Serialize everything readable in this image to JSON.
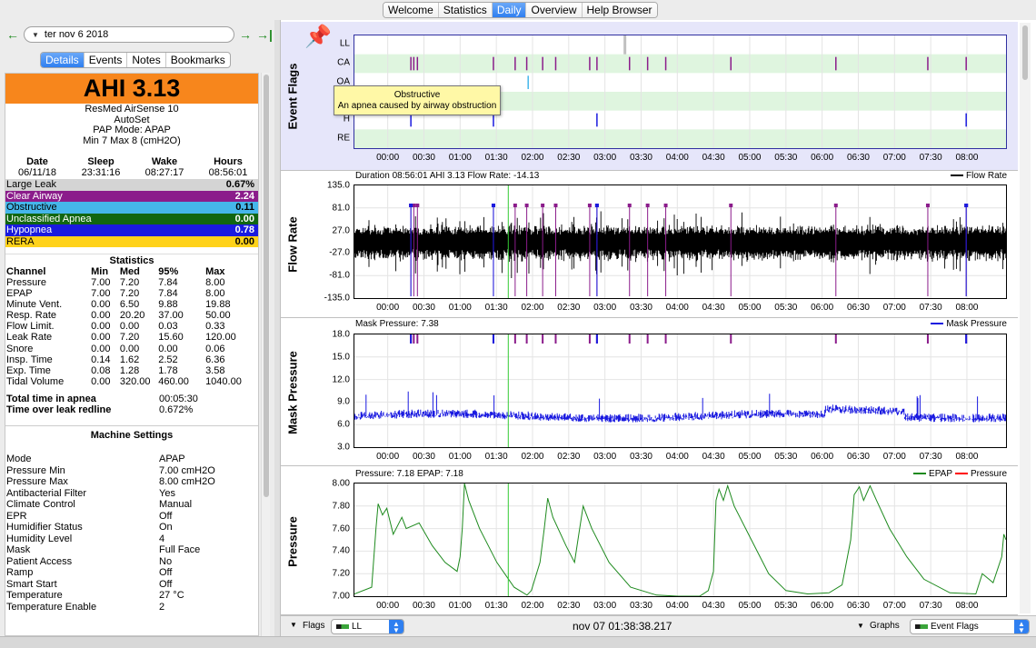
{
  "window": {
    "tabs": [
      {
        "label": "Welcome"
      },
      {
        "label": "Statistics"
      },
      {
        "label": "Daily"
      },
      {
        "label": "Overview"
      },
      {
        "label": "Help Browser"
      }
    ]
  },
  "nav": {
    "date": "ter nov 6 2018",
    "back": "←",
    "forward": "→",
    "last": "→|"
  },
  "left_tabs": [
    {
      "label": "Details"
    },
    {
      "label": "Events"
    },
    {
      "label": "Notes"
    },
    {
      "label": "Bookmarks"
    }
  ],
  "summary": {
    "ahi": "AHI 3.13",
    "device": "ResMed AirSense 10",
    "model": "AutoSet",
    "mode": "PAP Mode: APAP",
    "range": "Min 7 Max 8 (cmH2O)",
    "headers": [
      "Date",
      "Sleep",
      "Wake",
      "Hours"
    ],
    "values": [
      "06/11/18",
      "23:31:16",
      "08:27:17",
      "08:56:01"
    ]
  },
  "events": [
    {
      "label": "Large Leak",
      "value": "0.67%",
      "bg": "#d4d4d4",
      "fg": "#000000"
    },
    {
      "label": "Clear Airway",
      "value": "2.24",
      "bg": "#8b1c8b",
      "fg": "#ffffff"
    },
    {
      "label": "Obstructive",
      "value": "0.11",
      "bg": "#45b6ea",
      "fg": "#000000"
    },
    {
      "label": "Unclassified Apnea",
      "value": "0.00",
      "bg": "#116611",
      "fg": "#ffffff"
    },
    {
      "label": "Hypopnea",
      "value": "0.78",
      "bg": "#1a1adf",
      "fg": "#ffffff"
    },
    {
      "label": "RERA",
      "value": "0.00",
      "bg": "#ffd21a",
      "fg": "#000000"
    }
  ],
  "statistics": {
    "title": "Statistics",
    "headers": [
      "Channel",
      "Min",
      "Med",
      "95%",
      "Max"
    ],
    "rows": [
      [
        "Pressure",
        "7.00",
        "7.20",
        "7.84",
        "8.00"
      ],
      [
        "EPAP",
        "7.00",
        "7.20",
        "7.84",
        "8.00"
      ],
      [
        "Minute Vent.",
        "0.00",
        "6.50",
        "9.88",
        "19.88"
      ],
      [
        "Resp. Rate",
        "0.00",
        "20.20",
        "37.00",
        "50.00"
      ],
      [
        "Flow Limit.",
        "0.00",
        "0.00",
        "0.03",
        "0.33"
      ],
      [
        "Leak Rate",
        "0.00",
        "7.20",
        "15.60",
        "120.00"
      ],
      [
        "Snore",
        "0.00",
        "0.00",
        "0.00",
        "0.06"
      ],
      [
        "Insp. Time",
        "0.14",
        "1.62",
        "2.52",
        "6.36"
      ],
      [
        "Exp. Time",
        "0.08",
        "1.28",
        "1.78",
        "3.58"
      ],
      [
        "Tidal Volume",
        "0.00",
        "320.00",
        "460.00",
        "1040.00"
      ]
    ],
    "apnea_label": "Total time in apnea",
    "apnea_value": "00:05:30",
    "leak_label": "Time over leak redline",
    "leak_value": "0.672%"
  },
  "machine": {
    "title": "Machine Settings",
    "rows": [
      [
        "Mode",
        "APAP"
      ],
      [
        "Pressure Min",
        "7.00 cmH2O"
      ],
      [
        "Pressure Max",
        "8.00 cmH2O"
      ],
      [
        "Antibacterial Filter",
        "Yes"
      ],
      [
        "Climate Control",
        "Manual"
      ],
      [
        "EPR",
        "Off"
      ],
      [
        "Humidifier Status",
        "On"
      ],
      [
        "Humidity Level",
        "4"
      ],
      [
        "Mask",
        "Full Face"
      ],
      [
        "Patient Access",
        "No"
      ],
      [
        "Ramp",
        "Off"
      ],
      [
        "Smart Start",
        "Off"
      ],
      [
        "Temperature",
        "27 °C"
      ],
      [
        "Temperature Enable",
        "2"
      ]
    ]
  },
  "xaxis": [
    "00:00",
    "00:30",
    "01:00",
    "01:30",
    "02:00",
    "02:30",
    "03:00",
    "03:30",
    "04:00",
    "04:30",
    "05:00",
    "05:30",
    "06:00",
    "06:30",
    "07:00",
    "07:30",
    "08:00"
  ],
  "event_flags": {
    "ylabel": "Event Flags",
    "rows": [
      "LL",
      "CA",
      "OA",
      "UA",
      "H",
      "RE"
    ],
    "ca_times_hours": [
      0.78,
      0.82,
      0.87,
      1.92,
      2.22,
      2.38,
      2.6,
      2.78,
      3.25,
      3.35,
      3.8,
      4.05,
      4.3,
      5.2,
      6.65,
      7.92,
      8.45
    ],
    "oa_times_hours": [
      2.4
    ],
    "h_times_hours": [
      0.78,
      1.92,
      3.35,
      8.45
    ],
    "ll_times_hours": [
      3.73
    ],
    "tooltip_title": "Obstructive",
    "tooltip_text": "An apnea caused by airway obstruction"
  },
  "flow": {
    "ylabel": "Flow Rate",
    "title": "Duration 08:56:01 AHI 3.13 Flow Rate: -14.13",
    "legend": "Flow Rate",
    "yticks": [
      "135.0",
      "81.0",
      "27.0",
      "-27.0",
      "-81.0",
      "-135.0"
    ],
    "ylim": [
      -135,
      135
    ]
  },
  "mask": {
    "ylabel": "Mask Pressure",
    "title": "Mask Pressure: 7.38",
    "legend": "Mask Pressure",
    "yticks": [
      "18.0",
      "15.0",
      "12.0",
      "9.0",
      "6.0",
      "3.0"
    ],
    "ylim": [
      3,
      18
    ]
  },
  "pressure": {
    "ylabel": "Pressure",
    "title": "Pressure: 7.18 EPAP: 7.18",
    "legend_epap": "EPAP",
    "legend_pressure": "Pressure",
    "yticks": [
      "8.00",
      "7.80",
      "7.60",
      "7.40",
      "7.20",
      "7.00"
    ],
    "ylim": [
      7.0,
      8.0
    ],
    "colors": {
      "epap": "#1e8a1e",
      "pressure": "#ff0000"
    },
    "epap_series": [
      [
        0.0,
        7.02
      ],
      [
        0.4,
        7.08
      ],
      [
        0.5,
        7.6
      ],
      [
        0.55,
        7.82
      ],
      [
        0.65,
        7.72
      ],
      [
        0.75,
        7.78
      ],
      [
        0.9,
        7.55
      ],
      [
        1.1,
        7.7
      ],
      [
        1.2,
        7.6
      ],
      [
        1.5,
        7.65
      ],
      [
        1.8,
        7.45
      ],
      [
        2.1,
        7.3
      ],
      [
        2.38,
        7.22
      ],
      [
        2.45,
        7.35
      ],
      [
        2.5,
        7.6
      ],
      [
        2.55,
        8.0
      ],
      [
        2.65,
        7.85
      ],
      [
        2.9,
        7.6
      ],
      [
        3.3,
        7.3
      ],
      [
        3.7,
        7.08
      ],
      [
        4.0,
        7.01
      ],
      [
        4.1,
        7.05
      ],
      [
        4.3,
        7.3
      ],
      [
        4.4,
        7.6
      ],
      [
        4.48,
        7.87
      ],
      [
        4.6,
        7.7
      ],
      [
        4.9,
        7.45
      ],
      [
        5.1,
        7.3
      ],
      [
        5.2,
        7.55
      ],
      [
        5.3,
        7.8
      ],
      [
        5.5,
        7.6
      ],
      [
        5.9,
        7.3
      ],
      [
        6.4,
        7.08
      ],
      [
        7.0,
        7.01
      ],
      [
        7.5,
        7.0
      ],
      [
        8.0,
        7.0
      ],
      [
        8.2,
        7.05
      ],
      [
        8.32,
        7.22
      ],
      [
        8.38,
        7.85
      ],
      [
        8.45,
        7.95
      ],
      [
        8.55,
        7.85
      ],
      [
        8.65,
        7.98
      ],
      [
        8.8,
        7.8
      ],
      [
        9.2,
        7.5
      ],
      [
        9.6,
        7.2
      ],
      [
        10.0,
        7.05
      ],
      [
        10.5,
        7.02
      ],
      [
        11.0,
        7.03
      ],
      [
        11.3,
        7.1
      ],
      [
        11.5,
        7.5
      ],
      [
        11.58,
        7.9
      ],
      [
        11.7,
        7.97
      ],
      [
        11.8,
        7.85
      ],
      [
        11.95,
        7.98
      ],
      [
        12.1,
        7.85
      ],
      [
        12.4,
        7.6
      ],
      [
        12.8,
        7.35
      ],
      [
        13.2,
        7.15
      ],
      [
        13.8,
        7.03
      ],
      [
        14.4,
        7.02
      ],
      [
        14.55,
        7.2
      ],
      [
        14.8,
        7.12
      ],
      [
        15.0,
        7.35
      ],
      [
        15.05,
        7.55
      ],
      [
        15.1,
        7.5
      ]
    ]
  },
  "bottom": {
    "flags_label": "Flags",
    "flags_value": "LL",
    "timestamp": "nov 07 01:38:38.217",
    "graphs_label": "Graphs",
    "graphs_value": "Event Flags"
  }
}
